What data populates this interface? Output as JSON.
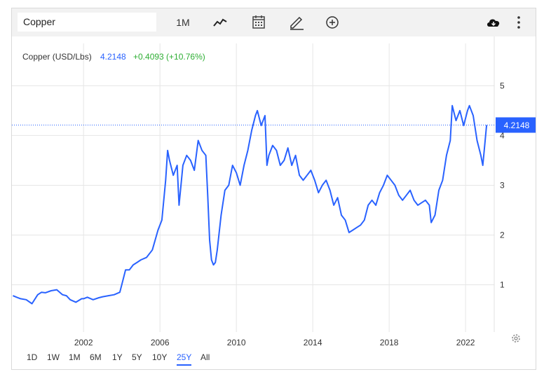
{
  "toolbar": {
    "symbol": "Copper",
    "period": "1M",
    "icons": [
      "line-chart-icon",
      "calendar-icon",
      "pencil-icon",
      "add-circle-icon",
      "cloud-download-icon",
      "more-vertical-icon"
    ]
  },
  "legend": {
    "name": "Copper (USD/Lbs)",
    "price": "4.2148",
    "change": "+0.4093 (+10.76%)"
  },
  "price_tag": "4.2148",
  "ranges": [
    "1D",
    "1W",
    "1M",
    "6M",
    "1Y",
    "5Y",
    "10Y",
    "25Y",
    "All"
  ],
  "active_range": "25Y",
  "colors": {
    "line": "#2962ff",
    "change": "#2eae34",
    "grid": "#e6e6e6",
    "axis_text": "#333333"
  },
  "chart_data": {
    "type": "line",
    "title": "",
    "xlabel": "",
    "ylabel": "",
    "x_ticks": [
      "2002",
      "2006",
      "2010",
      "2014",
      "2018",
      "2022"
    ],
    "y_ticks": [
      1,
      2,
      3,
      4,
      5
    ],
    "ylim": [
      0.05,
      5.85
    ],
    "xlim": [
      1998.25,
      2023.5
    ],
    "grid": true,
    "series": [
      {
        "name": "Copper (USD/Lbs)",
        "x": [
          1998.3,
          1998.5,
          1998.7,
          1999.0,
          1999.3,
          1999.6,
          1999.8,
          2000.0,
          2000.3,
          2000.6,
          2000.9,
          2001.1,
          2001.3,
          2001.6,
          2001.9,
          2002.0,
          2002.2,
          2002.5,
          2002.8,
          2003.0,
          2003.3,
          2003.6,
          2003.9,
          2004.0,
          2004.2,
          2004.4,
          2004.6,
          2004.8,
          2005.0,
          2005.3,
          2005.6,
          2005.9,
          2006.1,
          2006.3,
          2006.4,
          2006.5,
          2006.7,
          2006.9,
          2007.0,
          2007.2,
          2007.4,
          2007.6,
          2007.8,
          2008.0,
          2008.2,
          2008.4,
          2008.5,
          2008.6,
          2008.7,
          2008.8,
          2008.9,
          2009.0,
          2009.2,
          2009.4,
          2009.6,
          2009.8,
          2010.0,
          2010.2,
          2010.4,
          2010.6,
          2010.8,
          2011.0,
          2011.1,
          2011.3,
          2011.5,
          2011.6,
          2011.7,
          2011.9,
          2012.1,
          2012.3,
          2012.5,
          2012.7,
          2012.9,
          2013.1,
          2013.3,
          2013.5,
          2013.7,
          2013.9,
          2014.1,
          2014.3,
          2014.5,
          2014.7,
          2014.9,
          2015.1,
          2015.3,
          2015.5,
          2015.7,
          2015.9,
          2016.1,
          2016.3,
          2016.5,
          2016.7,
          2016.9,
          2017.1,
          2017.3,
          2017.5,
          2017.7,
          2017.9,
          2018.1,
          2018.3,
          2018.5,
          2018.7,
          2018.9,
          2019.1,
          2019.3,
          2019.5,
          2019.7,
          2019.9,
          2020.1,
          2020.2,
          2020.4,
          2020.6,
          2020.8,
          2021.0,
          2021.2,
          2021.3,
          2021.5,
          2021.7,
          2021.9,
          2022.1,
          2022.2,
          2022.4,
          2022.6,
          2022.8,
          2022.9,
          2023.0,
          2023.1
        ],
        "values": [
          0.78,
          0.75,
          0.72,
          0.7,
          0.62,
          0.8,
          0.85,
          0.84,
          0.88,
          0.9,
          0.8,
          0.78,
          0.7,
          0.65,
          0.72,
          0.72,
          0.75,
          0.7,
          0.74,
          0.76,
          0.78,
          0.8,
          0.85,
          1.0,
          1.3,
          1.3,
          1.4,
          1.45,
          1.5,
          1.55,
          1.7,
          2.1,
          2.3,
          3.1,
          3.7,
          3.5,
          3.2,
          3.4,
          2.6,
          3.4,
          3.6,
          3.5,
          3.3,
          3.9,
          3.7,
          3.6,
          2.8,
          1.9,
          1.5,
          1.4,
          1.45,
          1.7,
          2.4,
          2.9,
          3.0,
          3.4,
          3.25,
          3.0,
          3.4,
          3.7,
          4.1,
          4.4,
          4.5,
          4.2,
          4.4,
          3.4,
          3.6,
          3.8,
          3.7,
          3.4,
          3.5,
          3.75,
          3.4,
          3.6,
          3.2,
          3.1,
          3.2,
          3.3,
          3.1,
          2.85,
          3.0,
          3.1,
          2.9,
          2.6,
          2.75,
          2.4,
          2.3,
          2.05,
          2.1,
          2.15,
          2.2,
          2.3,
          2.6,
          2.7,
          2.6,
          2.85,
          3.0,
          3.2,
          3.1,
          3.0,
          2.8,
          2.7,
          2.8,
          2.9,
          2.7,
          2.6,
          2.65,
          2.7,
          2.6,
          2.25,
          2.4,
          2.9,
          3.1,
          3.6,
          3.9,
          4.6,
          4.3,
          4.5,
          4.2,
          4.5,
          4.6,
          4.4,
          3.9,
          3.6,
          3.4,
          3.8,
          4.21
        ]
      }
    ]
  }
}
